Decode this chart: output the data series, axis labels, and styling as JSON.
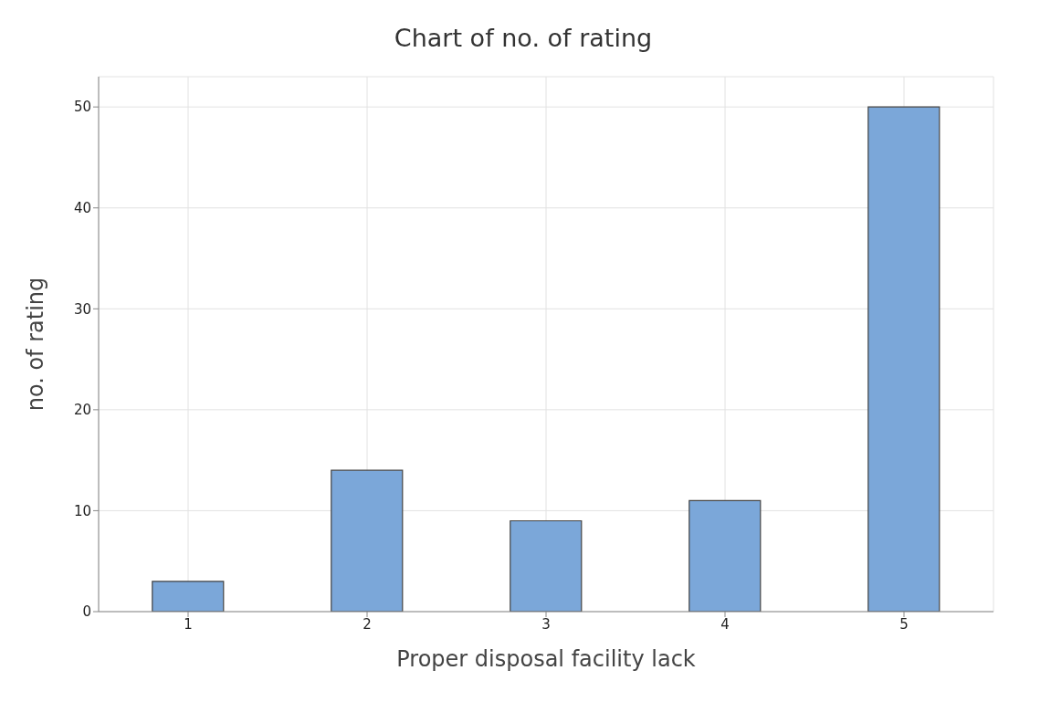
{
  "chart_data": {
    "type": "bar",
    "title": "Chart of no. of rating",
    "xlabel": "Proper disposal facility lack",
    "ylabel": "no. of rating",
    "categories": [
      "1",
      "2",
      "3",
      "4",
      "5"
    ],
    "values": [
      3,
      14,
      9,
      11,
      50
    ],
    "color": "#7ba7d9",
    "ylim": [
      0,
      53
    ],
    "yticks": [
      0,
      10,
      20,
      30,
      40,
      50
    ],
    "grid": true
  }
}
